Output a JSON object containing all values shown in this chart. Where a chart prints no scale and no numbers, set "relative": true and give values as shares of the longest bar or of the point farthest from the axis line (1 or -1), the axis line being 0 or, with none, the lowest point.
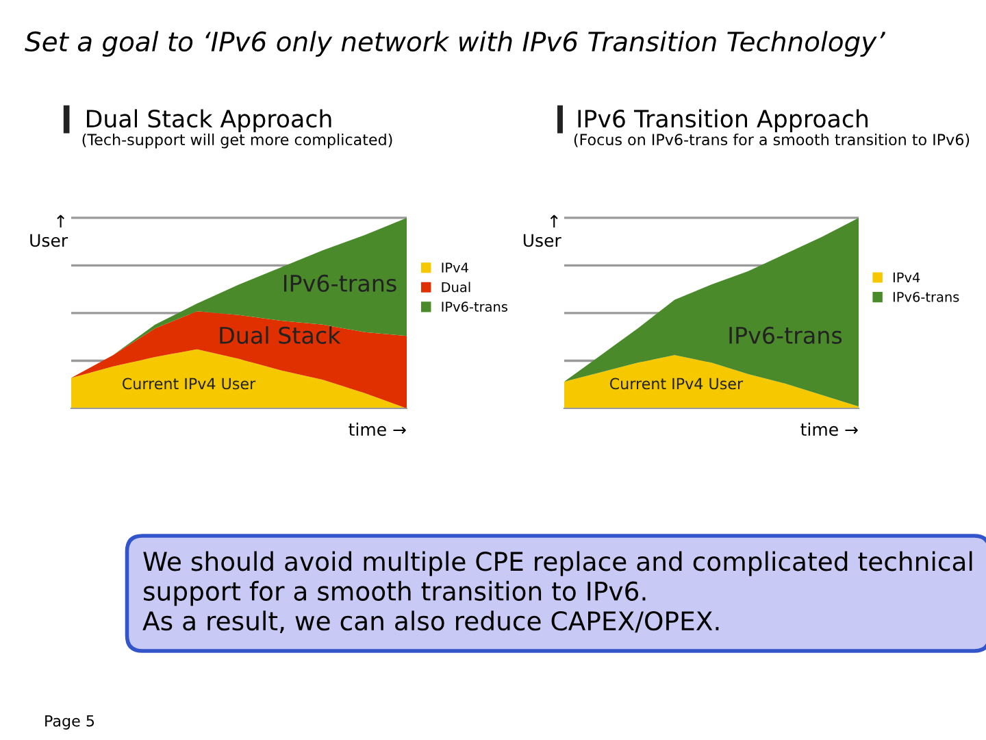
{
  "chart_data": [
    {
      "type": "area",
      "title": "Dual Stack Approach",
      "subtitle": "(Tech-support will get more complicated)",
      "xlabel": "time →",
      "ylabel": "↑\nUser",
      "relative": true,
      "stacked": true,
      "grid": "y",
      "legend": "right",
      "categories": [
        null,
        null,
        null,
        null,
        null,
        null,
        null,
        null,
        null
      ],
      "series": [
        {
          "name": "IPv4",
          "color": "#f5c800",
          "values": [
            0.16,
            0.22,
            0.27,
            0.31,
            0.26,
            0.2,
            0.15,
            0.08,
            0.0
          ]
        },
        {
          "name": "Dual",
          "color": "#e03000",
          "values": [
            0.0,
            0.06,
            0.15,
            0.2,
            0.23,
            0.26,
            0.29,
            0.32,
            0.38
          ]
        },
        {
          "name": "IPv6-trans",
          "color": "#4a8a2a",
          "values": [
            0.0,
            0.0,
            0.02,
            0.04,
            0.16,
            0.28,
            0.39,
            0.51,
            0.62
          ]
        }
      ],
      "annotations": [
        "Current IPv4 User",
        "Dual Stack",
        "IPv6-trans"
      ]
    },
    {
      "type": "area",
      "title": "IPv6 Transition Approach",
      "subtitle": "(Focus on IPv6-trans for a smooth transition to IPv6)",
      "xlabel": "time →",
      "ylabel": "↑\nUser",
      "relative": true,
      "stacked": true,
      "grid": "y",
      "legend": "right",
      "categories": [
        null,
        null,
        null,
        null,
        null,
        null,
        null,
        null,
        null
      ],
      "series": [
        {
          "name": "IPv4",
          "color": "#f5c800",
          "values": [
            0.14,
            0.19,
            0.24,
            0.28,
            0.24,
            0.18,
            0.13,
            0.07,
            0.01
          ]
        },
        {
          "name": "IPv6-trans",
          "color": "#4a8a2a",
          "values": [
            0.0,
            0.09,
            0.18,
            0.29,
            0.41,
            0.54,
            0.68,
            0.83,
            0.99
          ]
        }
      ],
      "annotations": [
        "Current IPv4 User",
        "IPv6-trans"
      ]
    },
    {
      "type": "other",
      "title": "Set a goal to ‘IPv6 only network with IPv6 Transition Technology’",
      "annotations": [
        "We should avoid multiple CPE replace and complicated technical support for a smooth transition to IPv6.\nAs a result, we can also reduce CAPEX/OPEX.",
        "Page 5"
      ]
    }
  ]
}
